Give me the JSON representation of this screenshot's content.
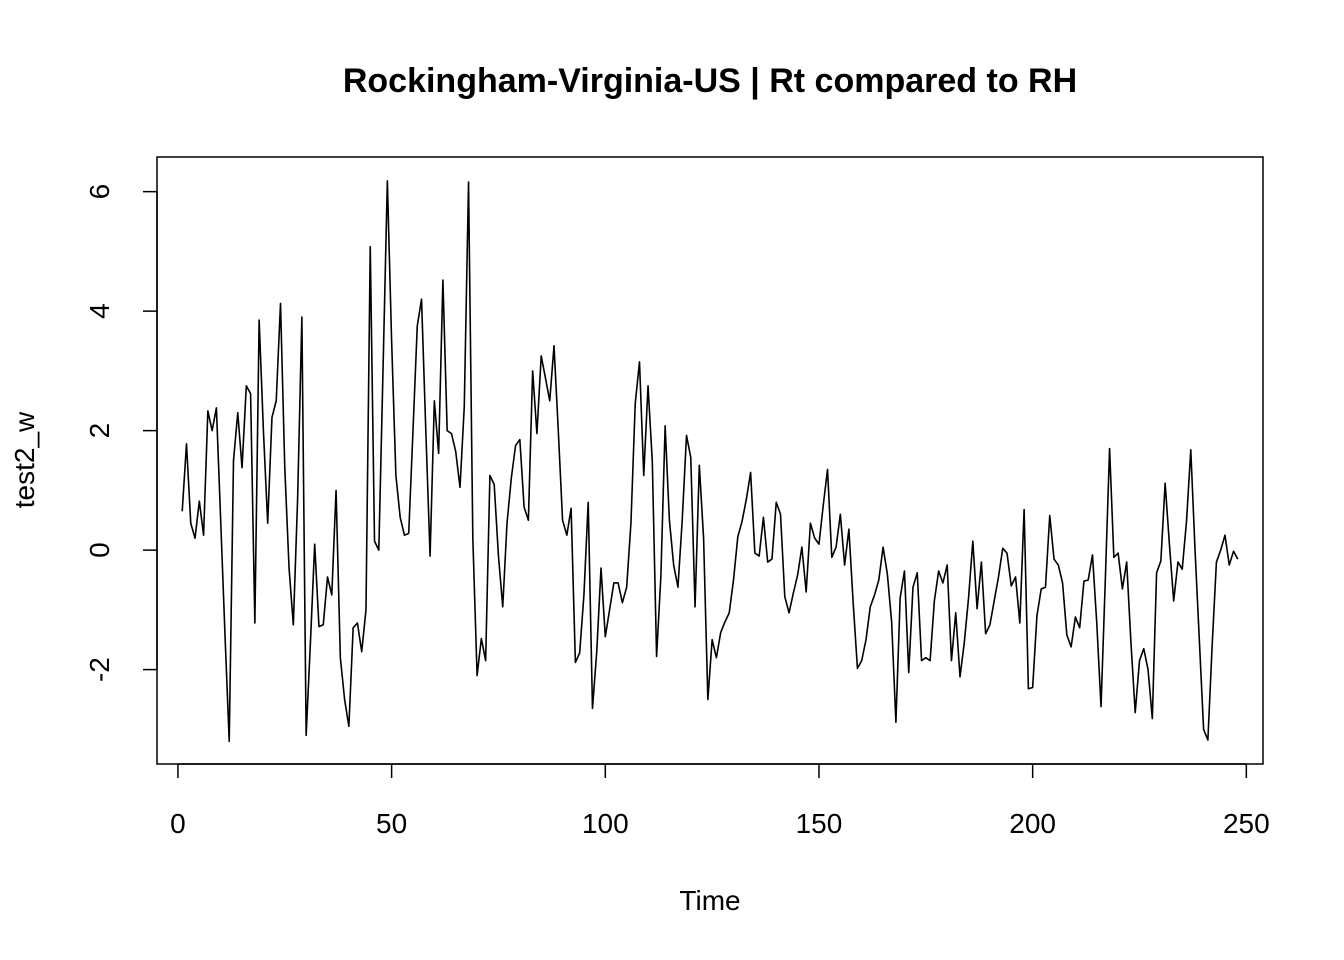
{
  "chart_data": {
    "type": "line",
    "title": "Rockingham-Virginia-US | Rt compared to RH",
    "xlabel": "Time",
    "ylabel": "test2_w",
    "xlim": [
      -4.9,
      253.9
    ],
    "ylim": [
      -3.58,
      6.58
    ],
    "xticks": [
      0,
      50,
      100,
      150,
      200,
      250
    ],
    "xtick_labels": [
      "0",
      "50",
      "100",
      "150",
      "200",
      "250"
    ],
    "yticks": [
      -2,
      0,
      2,
      4,
      6
    ],
    "ytick_labels": [
      "-2",
      "0",
      "2",
      "4",
      "6"
    ],
    "grid": false,
    "series": [
      {
        "x_start": 1,
        "x_step": 1,
        "values": [
          0.65,
          1.78,
          0.45,
          0.2,
          0.82,
          0.25,
          2.33,
          2.0,
          2.38,
          0.5,
          -1.4,
          -3.2,
          1.5,
          2.3,
          1.38,
          2.75,
          2.62,
          -1.22,
          3.85,
          2.0,
          0.45,
          2.22,
          2.5,
          4.13,
          1.38,
          -0.3,
          -1.25,
          0.85,
          3.9,
          -3.1,
          -1.55,
          0.1,
          -1.28,
          -1.25,
          -0.45,
          -0.75,
          1.0,
          -1.8,
          -2.5,
          -2.95,
          -1.3,
          -1.22,
          -1.7,
          -1.0,
          5.08,
          0.15,
          0.0,
          3.05,
          6.18,
          3.5,
          1.25,
          0.55,
          0.25,
          0.28,
          2.0,
          3.75,
          4.2,
          2.0,
          -0.1,
          2.5,
          1.62,
          4.52,
          2.0,
          1.95,
          1.65,
          1.05,
          2.4,
          6.16,
          0.2,
          -2.1,
          -1.48,
          -1.85,
          1.25,
          1.1,
          -0.1,
          -0.95,
          0.45,
          1.2,
          1.75,
          1.85,
          0.72,
          0.5,
          3.0,
          1.95,
          3.25,
          2.88,
          2.5,
          3.42,
          2.0,
          0.5,
          0.25,
          0.7,
          -1.88,
          -1.72,
          -0.75,
          0.8,
          -2.65,
          -1.7,
          -0.3,
          -1.45,
          -1.0,
          -0.55,
          -0.55,
          -0.88,
          -0.62,
          0.45,
          2.45,
          3.15,
          1.25,
          2.75,
          1.48,
          -1.78,
          -0.45,
          2.08,
          0.5,
          -0.25,
          -0.62,
          0.5,
          1.92,
          1.55,
          -0.95,
          1.42,
          0.2,
          -2.5,
          -1.5,
          -1.8,
          -1.38,
          -1.2,
          -1.05,
          -0.5,
          0.22,
          0.48,
          0.85,
          1.3,
          -0.05,
          -0.1,
          0.55,
          -0.2,
          -0.15,
          0.8,
          0.6,
          -0.78,
          -1.05,
          -0.72,
          -0.42,
          0.05,
          -0.7,
          0.45,
          0.2,
          0.1,
          0.75,
          1.35,
          -0.12,
          0.05,
          0.6,
          -0.25,
          0.35,
          -0.88,
          -1.98,
          -1.85,
          -1.5,
          -0.95,
          -0.75,
          -0.5,
          0.05,
          -0.4,
          -1.2,
          -2.88,
          -0.8,
          -0.35,
          -2.05,
          -0.62,
          -0.38,
          -1.85,
          -1.8,
          -1.85,
          -0.85,
          -0.35,
          -0.55,
          -0.25,
          -1.85,
          -1.05,
          -2.12,
          -1.55,
          -0.8,
          0.15,
          -0.98,
          -0.2,
          -1.4,
          -1.25,
          -0.85,
          -0.45,
          0.03,
          -0.05,
          -0.6,
          -0.45,
          -1.22,
          0.68,
          -2.32,
          -2.3,
          -1.1,
          -0.65,
          -0.62,
          0.58,
          -0.15,
          -0.25,
          -0.55,
          -1.42,
          -1.62,
          -1.12,
          -1.3,
          -0.52,
          -0.5,
          -0.08,
          -1.22,
          -2.62,
          -0.5,
          1.7,
          -0.12,
          -0.05,
          -0.65,
          -0.2,
          -1.55,
          -2.72,
          -1.85,
          -1.65,
          -2.0,
          -2.82,
          -0.38,
          -0.18,
          1.12,
          0.1,
          -0.85,
          -0.2,
          -0.32,
          0.48,
          1.68,
          0.0,
          -1.5,
          -3.0,
          -3.18,
          -1.6,
          -0.2,
          0.0,
          0.25,
          -0.25,
          -0.02,
          -0.15
        ]
      }
    ]
  }
}
